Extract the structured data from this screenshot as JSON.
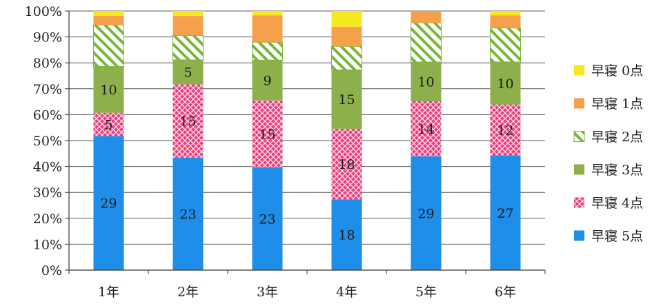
{
  "chart_data": {
    "type": "bar",
    "stacked": true,
    "percent": true,
    "categories": [
      "1年",
      "2年",
      "3年",
      "4年",
      "5年",
      "6年"
    ],
    "series": [
      {
        "name": "早寝 5点",
        "values": [
          29,
          23,
          23,
          18,
          29,
          27
        ],
        "labels": [
          "29",
          "23",
          "23",
          "18",
          "29",
          "27"
        ],
        "color": "#1f8ee8",
        "pattern": "solid"
      },
      {
        "name": "早寝 4点",
        "values": [
          5,
          15,
          15,
          18,
          14,
          12
        ],
        "labels": [
          "5",
          "15",
          "15",
          "18",
          "14",
          "12"
        ],
        "color": "#e8417f",
        "pattern": "cross"
      },
      {
        "name": "早寝 3点",
        "values": [
          10,
          5,
          9,
          15,
          10,
          10
        ],
        "labels": [
          "10",
          "5",
          "9",
          "15",
          "10",
          "10"
        ],
        "color": "#8db04c",
        "pattern": "solid"
      },
      {
        "name": "早寝 2点",
        "values": [
          9,
          5,
          4,
          6,
          10,
          8
        ],
        "labels": [
          "",
          "",
          "",
          "",
          "",
          ""
        ],
        "color": "#78b63a",
        "pattern": "diagonal"
      },
      {
        "name": "早寝 1点",
        "values": [
          2,
          4,
          6,
          5,
          3,
          3
        ],
        "labels": [
          "",
          "",
          "",
          "",
          "",
          ""
        ],
        "color": "#f5a04a",
        "pattern": "solid"
      },
      {
        "name": "早寝 0点",
        "values": [
          1,
          1,
          1,
          4,
          0,
          1
        ],
        "labels": [
          "",
          "",
          "",
          "",
          "",
          ""
        ],
        "color": "#f5e820",
        "pattern": "solid"
      }
    ],
    "yticks": [
      "0%",
      "10%",
      "20%",
      "30%",
      "40%",
      "50%",
      "60%",
      "70%",
      "80%",
      "90%",
      "100%"
    ],
    "ylim": [
      0,
      100
    ],
    "grid": true,
    "legend_position": "right"
  }
}
